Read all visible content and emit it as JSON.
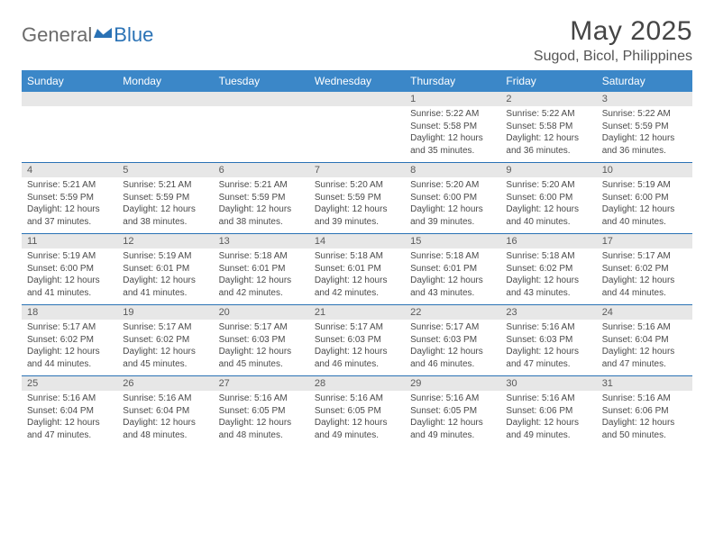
{
  "logo": {
    "general": "General",
    "blue": "Blue"
  },
  "title": "May 2025",
  "location": "Sugod, Bicol, Philippines",
  "colors": {
    "header_bg": "#3b87c8",
    "header_fg": "#ffffff",
    "daynum_bg": "#e7e7e7",
    "week_divider": "#2a72b5",
    "text": "#4a4a4a",
    "title_color": "#454545"
  },
  "dayheads": [
    "Sunday",
    "Monday",
    "Tuesday",
    "Wednesday",
    "Thursday",
    "Friday",
    "Saturday"
  ],
  "weeks": [
    {
      "nums": [
        "",
        "",
        "",
        "",
        "1",
        "2",
        "3"
      ],
      "cells": [
        "",
        "",
        "",
        "",
        "Sunrise: 5:22 AM\nSunset: 5:58 PM\nDaylight: 12 hours and 35 minutes.",
        "Sunrise: 5:22 AM\nSunset: 5:58 PM\nDaylight: 12 hours and 36 minutes.",
        "Sunrise: 5:22 AM\nSunset: 5:59 PM\nDaylight: 12 hours and 36 minutes."
      ]
    },
    {
      "nums": [
        "4",
        "5",
        "6",
        "7",
        "8",
        "9",
        "10"
      ],
      "cells": [
        "Sunrise: 5:21 AM\nSunset: 5:59 PM\nDaylight: 12 hours and 37 minutes.",
        "Sunrise: 5:21 AM\nSunset: 5:59 PM\nDaylight: 12 hours and 38 minutes.",
        "Sunrise: 5:21 AM\nSunset: 5:59 PM\nDaylight: 12 hours and 38 minutes.",
        "Sunrise: 5:20 AM\nSunset: 5:59 PM\nDaylight: 12 hours and 39 minutes.",
        "Sunrise: 5:20 AM\nSunset: 6:00 PM\nDaylight: 12 hours and 39 minutes.",
        "Sunrise: 5:20 AM\nSunset: 6:00 PM\nDaylight: 12 hours and 40 minutes.",
        "Sunrise: 5:19 AM\nSunset: 6:00 PM\nDaylight: 12 hours and 40 minutes."
      ]
    },
    {
      "nums": [
        "11",
        "12",
        "13",
        "14",
        "15",
        "16",
        "17"
      ],
      "cells": [
        "Sunrise: 5:19 AM\nSunset: 6:00 PM\nDaylight: 12 hours and 41 minutes.",
        "Sunrise: 5:19 AM\nSunset: 6:01 PM\nDaylight: 12 hours and 41 minutes.",
        "Sunrise: 5:18 AM\nSunset: 6:01 PM\nDaylight: 12 hours and 42 minutes.",
        "Sunrise: 5:18 AM\nSunset: 6:01 PM\nDaylight: 12 hours and 42 minutes.",
        "Sunrise: 5:18 AM\nSunset: 6:01 PM\nDaylight: 12 hours and 43 minutes.",
        "Sunrise: 5:18 AM\nSunset: 6:02 PM\nDaylight: 12 hours and 43 minutes.",
        "Sunrise: 5:17 AM\nSunset: 6:02 PM\nDaylight: 12 hours and 44 minutes."
      ]
    },
    {
      "nums": [
        "18",
        "19",
        "20",
        "21",
        "22",
        "23",
        "24"
      ],
      "cells": [
        "Sunrise: 5:17 AM\nSunset: 6:02 PM\nDaylight: 12 hours and 44 minutes.",
        "Sunrise: 5:17 AM\nSunset: 6:02 PM\nDaylight: 12 hours and 45 minutes.",
        "Sunrise: 5:17 AM\nSunset: 6:03 PM\nDaylight: 12 hours and 45 minutes.",
        "Sunrise: 5:17 AM\nSunset: 6:03 PM\nDaylight: 12 hours and 46 minutes.",
        "Sunrise: 5:17 AM\nSunset: 6:03 PM\nDaylight: 12 hours and 46 minutes.",
        "Sunrise: 5:16 AM\nSunset: 6:03 PM\nDaylight: 12 hours and 47 minutes.",
        "Sunrise: 5:16 AM\nSunset: 6:04 PM\nDaylight: 12 hours and 47 minutes."
      ]
    },
    {
      "nums": [
        "25",
        "26",
        "27",
        "28",
        "29",
        "30",
        "31"
      ],
      "cells": [
        "Sunrise: 5:16 AM\nSunset: 6:04 PM\nDaylight: 12 hours and 47 minutes.",
        "Sunrise: 5:16 AM\nSunset: 6:04 PM\nDaylight: 12 hours and 48 minutes.",
        "Sunrise: 5:16 AM\nSunset: 6:05 PM\nDaylight: 12 hours and 48 minutes.",
        "Sunrise: 5:16 AM\nSunset: 6:05 PM\nDaylight: 12 hours and 49 minutes.",
        "Sunrise: 5:16 AM\nSunset: 6:05 PM\nDaylight: 12 hours and 49 minutes.",
        "Sunrise: 5:16 AM\nSunset: 6:06 PM\nDaylight: 12 hours and 49 minutes.",
        "Sunrise: 5:16 AM\nSunset: 6:06 PM\nDaylight: 12 hours and 50 minutes."
      ]
    }
  ]
}
